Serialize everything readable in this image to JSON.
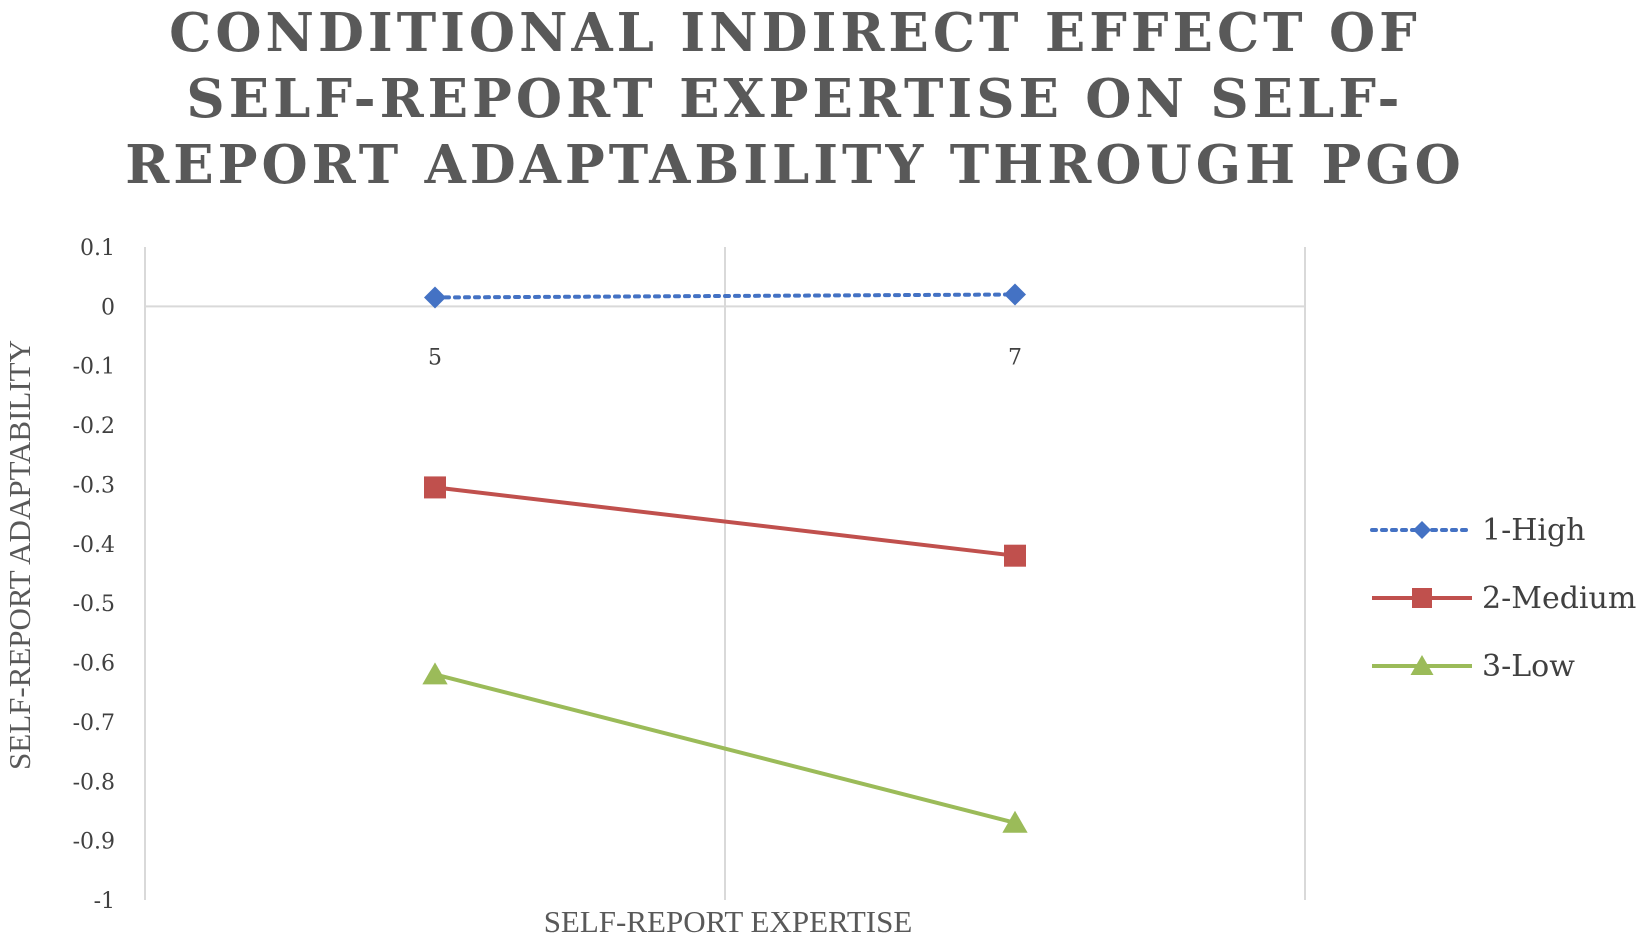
{
  "chart_data": {
    "type": "line",
    "title": "CONDITIONAL INDIRECT EFFECT OF SELF-REPORT EXPERTISE ON SELF-REPORT ADAPTABILITY THROUGH PGO",
    "xlabel": "SELF-REPORT EXPERTISE",
    "ylabel": "SELF-REPORT ADAPTABILITY",
    "categories": [
      "5",
      "7"
    ],
    "ylim": [
      -1,
      0.1
    ],
    "yticks": [
      "0.1",
      "0",
      "-0.1",
      "-0.2",
      "-0.3",
      "-0.4",
      "-0.5",
      "-0.6",
      "-0.7",
      "-0.8",
      "-0.9",
      "-1"
    ],
    "grid": true,
    "legend_position": "right",
    "series": [
      {
        "name": "1-High",
        "values": [
          0.015,
          0.02
        ],
        "color": "#4472C4",
        "marker": "diamond",
        "line": "dotted"
      },
      {
        "name": "2-Medium",
        "values": [
          -0.305,
          -0.42
        ],
        "color": "#C0504D",
        "marker": "square",
        "line": "solid"
      },
      {
        "name": "3-Low",
        "values": [
          -0.62,
          -0.87
        ],
        "color": "#9BBB59",
        "marker": "triangle",
        "line": "solid"
      }
    ]
  }
}
